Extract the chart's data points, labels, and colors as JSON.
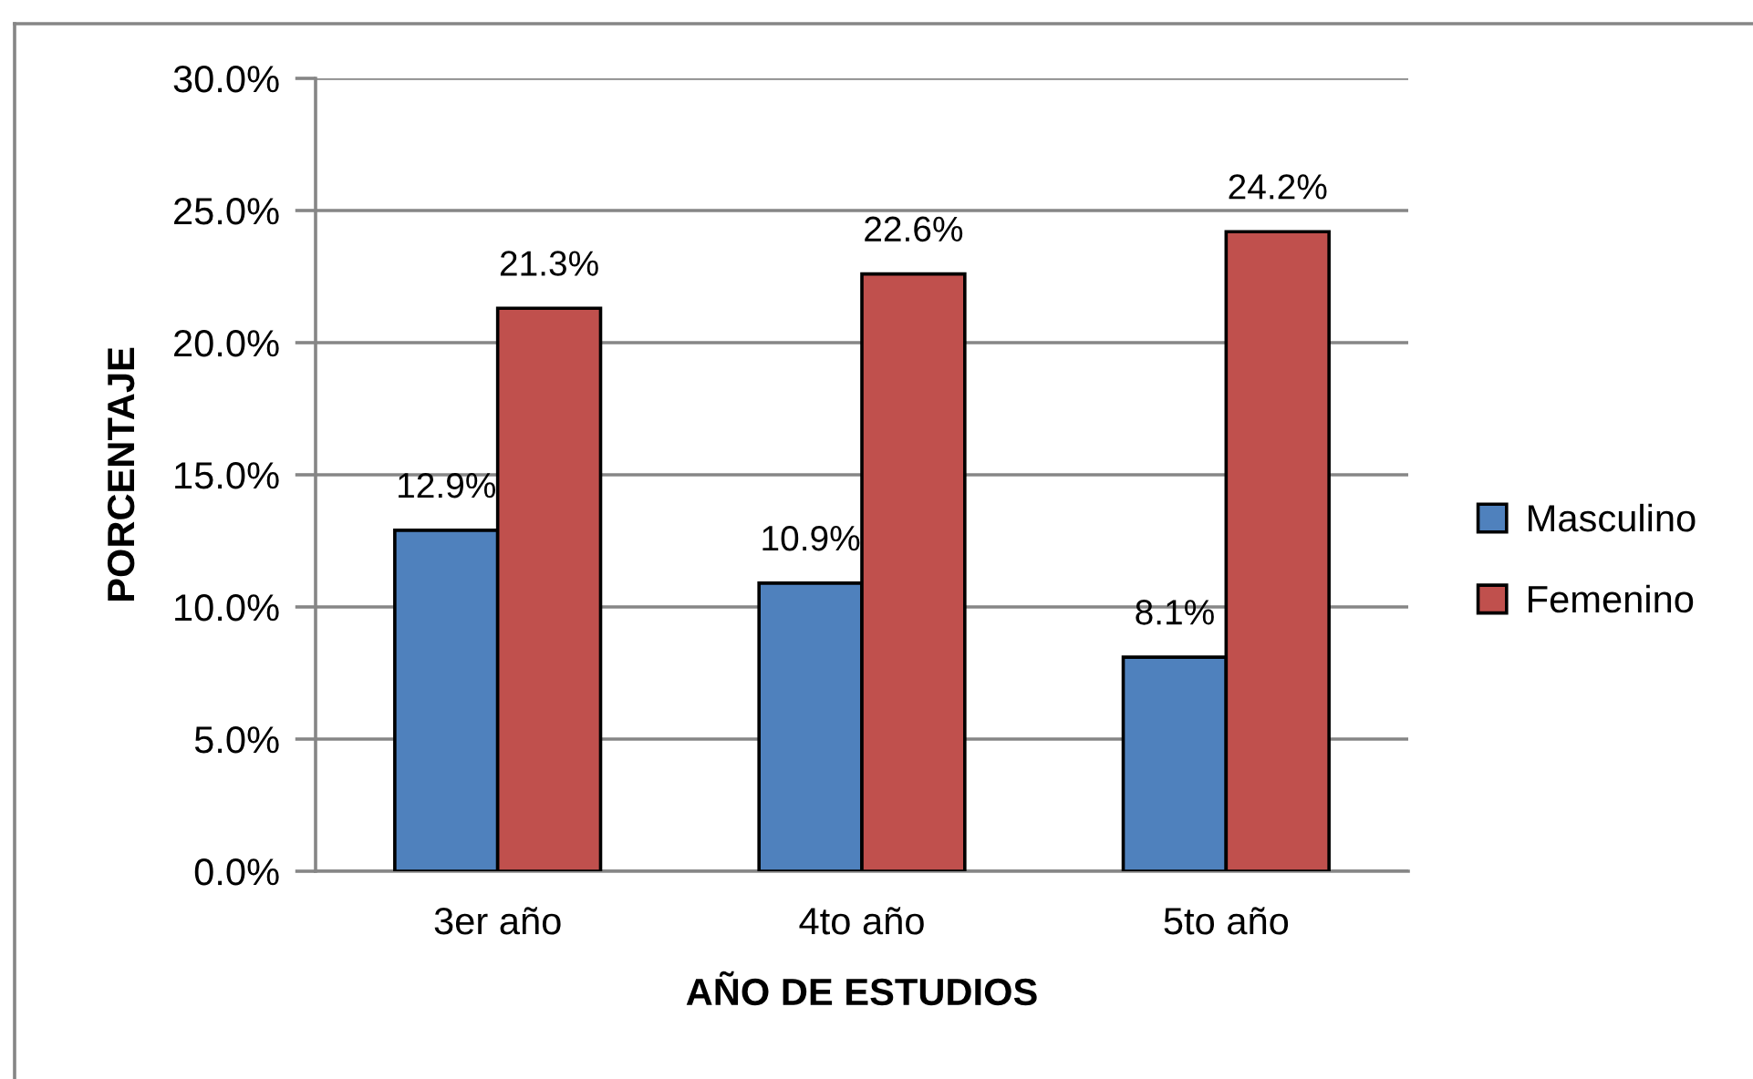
{
  "chart_data": {
    "type": "bar",
    "xlabel": "AÑO DE ESTUDIOS",
    "ylabel": "PORCENTAJE",
    "categories": [
      "3er año",
      "4to año",
      "5to año"
    ],
    "series": [
      {
        "name": "Masculino",
        "color": "#4f81bd",
        "values": [
          12.9,
          10.9,
          8.1
        ],
        "value_labels": [
          "12.9%",
          "10.9%",
          "8.1%"
        ]
      },
      {
        "name": "Femenino",
        "color": "#c0504d",
        "values": [
          21.3,
          22.6,
          24.2
        ],
        "value_labels": [
          "21.3%",
          "22.6%",
          "24.2%"
        ]
      }
    ],
    "ylim": [
      0,
      30
    ],
    "yticks": [
      {
        "value": 0,
        "label": "0.0%"
      },
      {
        "value": 5,
        "label": "5.0%"
      },
      {
        "value": 10,
        "label": "10.0%"
      },
      {
        "value": 15,
        "label": "15.0%"
      },
      {
        "value": 20,
        "label": "20.0%"
      },
      {
        "value": 25,
        "label": "25.0%"
      },
      {
        "value": 30,
        "label": "30.0%"
      }
    ],
    "grid": "y",
    "legend": "right"
  }
}
